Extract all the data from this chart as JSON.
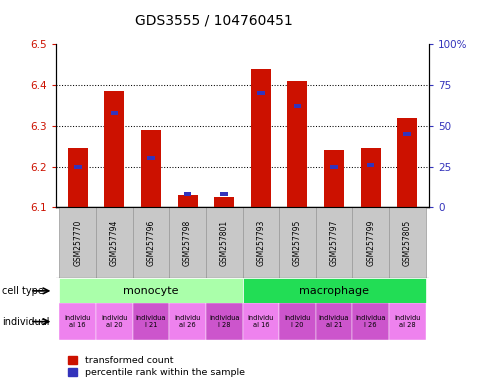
{
  "title": "GDS3555 / 104760451",
  "samples": [
    "GSM257770",
    "GSM257794",
    "GSM257796",
    "GSM257798",
    "GSM257801",
    "GSM257793",
    "GSM257795",
    "GSM257797",
    "GSM257799",
    "GSM257805"
  ],
  "red_values": [
    6.245,
    6.385,
    6.29,
    6.13,
    6.125,
    6.44,
    6.41,
    6.24,
    6.245,
    6.32
  ],
  "blue_values_pct": [
    25,
    58,
    30,
    8,
    8,
    70,
    62,
    25,
    26,
    45
  ],
  "ylim_left": [
    6.1,
    6.5
  ],
  "ylim_right": [
    0,
    100
  ],
  "yticks_left": [
    6.1,
    6.2,
    6.3,
    6.4,
    6.5
  ],
  "yticks_right": [
    0,
    25,
    50,
    75,
    100
  ],
  "ytick_labels_right": [
    "0",
    "25",
    "50",
    "75",
    "100%"
  ],
  "cell_type_groups": [
    {
      "label": "monocyte",
      "start": 0,
      "end": 5,
      "color": "#aaffaa"
    },
    {
      "label": "macrophage",
      "start": 5,
      "end": 10,
      "color": "#22dd55"
    }
  ],
  "bar_width": 0.55,
  "red_color": "#CC1100",
  "blue_color": "#3333BB",
  "left_tick_color": "#CC1100",
  "right_tick_color": "#3333BB",
  "ind_labels_line1": [
    "individu",
    "individu",
    "individua",
    "individu",
    "individua",
    "individu",
    "individu",
    "individua",
    "individua",
    "individu"
  ],
  "ind_labels_line2": [
    "al 16",
    "al 20",
    "l 21",
    "al 26",
    "l 28",
    "al 16",
    "l 20",
    "al 21",
    "l 26",
    "al 28"
  ],
  "ind_colors": [
    "#EE82EE",
    "#EE82EE",
    "#CC55CC",
    "#EE82EE",
    "#CC55CC",
    "#EE82EE",
    "#CC55CC",
    "#CC55CC",
    "#CC55CC",
    "#EE82EE"
  ]
}
